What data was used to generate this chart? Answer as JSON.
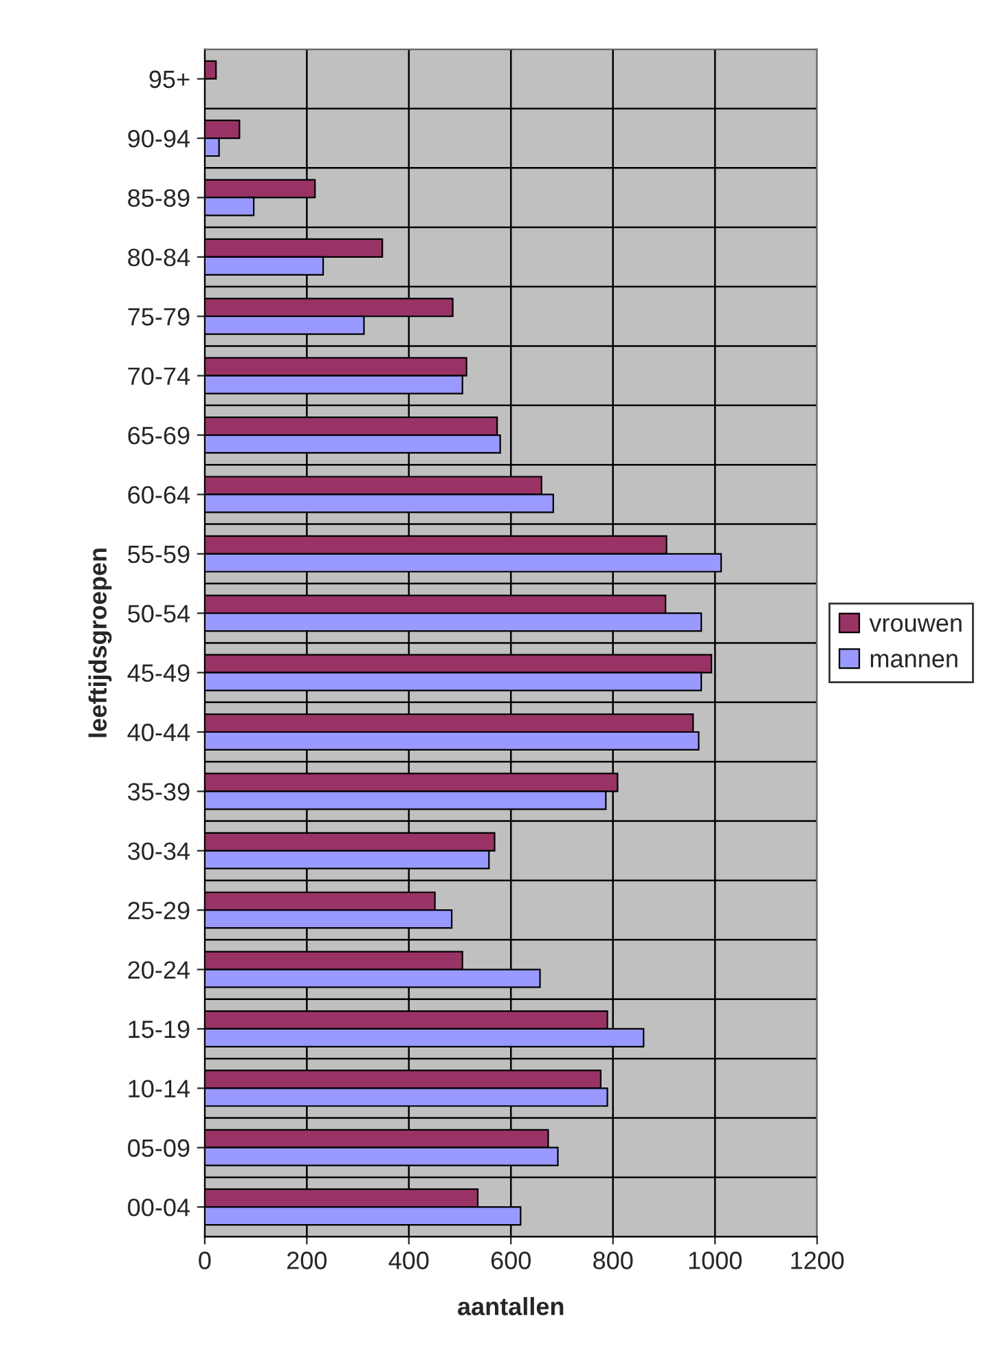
{
  "chart_data": {
    "type": "bar",
    "orientation": "horizontal",
    "xlabel": "aantallen",
    "ylabel": "leeftijdsgroepen",
    "categories": [
      "95+",
      "90-94",
      "85-89",
      "80-84",
      "75-79",
      "70-74",
      "65-69",
      "60-64",
      "55-59",
      "50-54",
      "45-49",
      "40-44",
      "35-39",
      "30-34",
      "25-29",
      "20-24",
      "15-19",
      "10-14",
      "05-09",
      "00-04"
    ],
    "series": [
      {
        "name": "vrouwen",
        "color": "#993366",
        "values": [
          22,
          68,
          216,
          348,
          486,
          513,
          573,
          660,
          905,
          903,
          993,
          957,
          809,
          568,
          451,
          505,
          789,
          776,
          673,
          535
        ]
      },
      {
        "name": "mannen",
        "color": "#9999ff",
        "values": [
          null,
          28,
          96,
          232,
          312,
          505,
          579,
          683,
          1012,
          973,
          973,
          968,
          786,
          557,
          484,
          657,
          860,
          789,
          692,
          619
        ]
      }
    ],
    "xlim": [
      0,
      1200
    ],
    "xticks": [
      0,
      200,
      400,
      600,
      800,
      1000,
      1200
    ],
    "grid": true,
    "legend": "right"
  }
}
